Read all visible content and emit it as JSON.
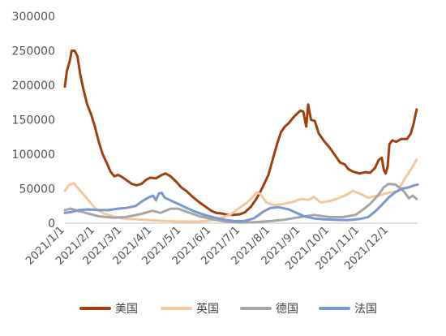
{
  "chart_data": {
    "type": "line",
    "title": "",
    "xlabel": "",
    "ylabel": "",
    "ylim": [
      0,
      300000
    ],
    "yticks": [
      0,
      50000,
      100000,
      150000,
      200000,
      250000,
      300000
    ],
    "ytick_labels": [
      "0",
      "50000",
      "100000",
      "150000",
      "200000",
      "250000",
      "300000"
    ],
    "x_range": [
      "2021-01-01",
      "2021-12-31"
    ],
    "xtick_labels": [
      "2021/1/1",
      "2021/2/1",
      "2021/3/1",
      "2021/4/1",
      "2021/5/1",
      "2021/6/1",
      "2021/7/1",
      "2021/8/1",
      "2021/9/1",
      "2021/10/1",
      "2021/11/1",
      "2021/12/1"
    ],
    "grid": false,
    "legend_position": "bottom",
    "series": [
      {
        "name": "美国",
        "color": "#A0410D",
        "points": [
          [
            "2021-01-01",
            198000
          ],
          [
            "2021-01-03",
            220000
          ],
          [
            "2021-01-06",
            235000
          ],
          [
            "2021-01-08",
            250000
          ],
          [
            "2021-01-11",
            250000
          ],
          [
            "2021-01-14",
            242000
          ],
          [
            "2021-01-17",
            215000
          ],
          [
            "2021-01-20",
            195000
          ],
          [
            "2021-01-24",
            172000
          ],
          [
            "2021-01-28",
            158000
          ],
          [
            "2021-02-01",
            140000
          ],
          [
            "2021-02-05",
            118000
          ],
          [
            "2021-02-09",
            100000
          ],
          [
            "2021-02-13",
            88000
          ],
          [
            "2021-02-17",
            75000
          ],
          [
            "2021-02-21",
            68000
          ],
          [
            "2021-02-25",
            70000
          ],
          [
            "2021-03-01",
            67000
          ],
          [
            "2021-03-06",
            62000
          ],
          [
            "2021-03-11",
            57000
          ],
          [
            "2021-03-16",
            55000
          ],
          [
            "2021-03-21",
            57000
          ],
          [
            "2021-03-26",
            63000
          ],
          [
            "2021-03-30",
            66000
          ],
          [
            "2021-04-05",
            65000
          ],
          [
            "2021-04-11",
            70000
          ],
          [
            "2021-04-15",
            72000
          ],
          [
            "2021-04-20",
            68000
          ],
          [
            "2021-04-26",
            60000
          ],
          [
            "2021-05-01",
            52000
          ],
          [
            "2021-05-07",
            46000
          ],
          [
            "2021-05-13",
            38000
          ],
          [
            "2021-05-20",
            30000
          ],
          [
            "2021-05-26",
            24000
          ],
          [
            "2021-06-01",
            18000
          ],
          [
            "2021-06-06",
            15000
          ],
          [
            "2021-06-12",
            14000
          ],
          [
            "2021-06-18",
            12000
          ],
          [
            "2021-06-24",
            12000
          ],
          [
            "2021-07-01",
            13000
          ],
          [
            "2021-07-06",
            16000
          ],
          [
            "2021-07-12",
            24000
          ],
          [
            "2021-07-18",
            36000
          ],
          [
            "2021-07-24",
            52000
          ],
          [
            "2021-07-30",
            70000
          ],
          [
            "2021-08-04",
            95000
          ],
          [
            "2021-08-08",
            115000
          ],
          [
            "2021-08-12",
            132000
          ],
          [
            "2021-08-16",
            140000
          ],
          [
            "2021-08-20",
            145000
          ],
          [
            "2021-08-24",
            152000
          ],
          [
            "2021-08-28",
            158000
          ],
          [
            "2021-09-01",
            163000
          ],
          [
            "2021-09-04",
            162000
          ],
          [
            "2021-09-07",
            140000
          ],
          [
            "2021-09-09",
            172000
          ],
          [
            "2021-09-12",
            150000
          ],
          [
            "2021-09-16",
            148000
          ],
          [
            "2021-09-20",
            130000
          ],
          [
            "2021-09-26",
            118000
          ],
          [
            "2021-10-01",
            110000
          ],
          [
            "2021-10-06",
            100000
          ],
          [
            "2021-10-12",
            88000
          ],
          [
            "2021-10-17",
            85000
          ],
          [
            "2021-10-20",
            79000
          ],
          [
            "2021-10-25",
            75000
          ],
          [
            "2021-11-01",
            72000
          ],
          [
            "2021-11-07",
            74000
          ],
          [
            "2021-11-12",
            73000
          ],
          [
            "2021-11-17",
            80000
          ],
          [
            "2021-11-21",
            92000
          ],
          [
            "2021-11-24",
            95000
          ],
          [
            "2021-11-26",
            78000
          ],
          [
            "2021-11-28",
            72000
          ],
          [
            "2021-11-30",
            82000
          ],
          [
            "2021-12-02",
            115000
          ],
          [
            "2021-12-05",
            120000
          ],
          [
            "2021-12-09",
            118000
          ],
          [
            "2021-12-14",
            122000
          ],
          [
            "2021-12-20",
            122000
          ],
          [
            "2021-12-24",
            130000
          ],
          [
            "2021-12-27",
            145000
          ],
          [
            "2021-12-30",
            165000
          ]
        ]
      },
      {
        "name": "英国",
        "color": "#F4C79D",
        "points": [
          [
            "2021-01-01",
            47000
          ],
          [
            "2021-01-05",
            55000
          ],
          [
            "2021-01-10",
            58000
          ],
          [
            "2021-01-15",
            50000
          ],
          [
            "2021-01-20",
            42000
          ],
          [
            "2021-01-26",
            32000
          ],
          [
            "2021-02-01",
            22000
          ],
          [
            "2021-02-10",
            14000
          ],
          [
            "2021-02-20",
            10000
          ],
          [
            "2021-03-01",
            7000
          ],
          [
            "2021-03-15",
            5500
          ],
          [
            "2021-04-01",
            4500
          ],
          [
            "2021-04-15",
            3000
          ],
          [
            "2021-05-01",
            2500
          ],
          [
            "2021-05-20",
            2500
          ],
          [
            "2021-06-01",
            4000
          ],
          [
            "2021-06-10",
            7000
          ],
          [
            "2021-06-20",
            12000
          ],
          [
            "2021-06-30",
            22000
          ],
          [
            "2021-07-08",
            30000
          ],
          [
            "2021-07-14",
            38000
          ],
          [
            "2021-07-18",
            45000
          ],
          [
            "2021-07-22",
            42000
          ],
          [
            "2021-07-28",
            30000
          ],
          [
            "2021-08-05",
            26000
          ],
          [
            "2021-08-15",
            28000
          ],
          [
            "2021-08-25",
            31000
          ],
          [
            "2021-09-01",
            35000
          ],
          [
            "2021-09-10",
            34000
          ],
          [
            "2021-09-15",
            38000
          ],
          [
            "2021-09-22",
            30000
          ],
          [
            "2021-10-01",
            32000
          ],
          [
            "2021-10-10",
            36000
          ],
          [
            "2021-10-20",
            42000
          ],
          [
            "2021-10-25",
            47000
          ],
          [
            "2021-11-01",
            43000
          ],
          [
            "2021-11-10",
            37000
          ],
          [
            "2021-11-20",
            40000
          ],
          [
            "2021-12-01",
            44000
          ],
          [
            "2021-12-10",
            46000
          ],
          [
            "2021-12-18",
            65000
          ],
          [
            "2021-12-25",
            80000
          ],
          [
            "2021-12-30",
            92000
          ]
        ]
      },
      {
        "name": "德国",
        "color": "#A6A6A6",
        "points": [
          [
            "2021-01-01",
            19000
          ],
          [
            "2021-01-07",
            21000
          ],
          [
            "2021-01-14",
            18000
          ],
          [
            "2021-01-25",
            14000
          ],
          [
            "2021-02-05",
            10000
          ],
          [
            "2021-02-20",
            8000
          ],
          [
            "2021-03-05",
            9000
          ],
          [
            "2021-03-20",
            13000
          ],
          [
            "2021-04-01",
            18000
          ],
          [
            "2021-04-10",
            15000
          ],
          [
            "2021-04-20",
            21000
          ],
          [
            "2021-04-28",
            21000
          ],
          [
            "2021-05-10",
            15000
          ],
          [
            "2021-05-20",
            10000
          ],
          [
            "2021-06-01",
            6000
          ],
          [
            "2021-06-15",
            2500
          ],
          [
            "2021-07-01",
            800
          ],
          [
            "2021-07-15",
            1500
          ],
          [
            "2021-08-01",
            3000
          ],
          [
            "2021-08-15",
            5000
          ],
          [
            "2021-09-01",
            9000
          ],
          [
            "2021-09-15",
            12000
          ],
          [
            "2021-10-01",
            9000
          ],
          [
            "2021-10-15",
            9000
          ],
          [
            "2021-10-28",
            12000
          ],
          [
            "2021-11-05",
            20000
          ],
          [
            "2021-11-12",
            28000
          ],
          [
            "2021-11-20",
            40000
          ],
          [
            "2021-11-26",
            52000
          ],
          [
            "2021-12-01",
            57000
          ],
          [
            "2021-12-08",
            56000
          ],
          [
            "2021-12-14",
            50000
          ],
          [
            "2021-12-18",
            44000
          ],
          [
            "2021-12-22",
            36000
          ],
          [
            "2021-12-26",
            40000
          ],
          [
            "2021-12-30",
            35000
          ]
        ]
      },
      {
        "name": "法国",
        "color": "#7B98D0",
        "points": [
          [
            "2021-01-01",
            15000
          ],
          [
            "2021-01-07",
            16000
          ],
          [
            "2021-01-15",
            19000
          ],
          [
            "2021-01-25",
            20000
          ],
          [
            "2021-02-05",
            19000
          ],
          [
            "2021-02-15",
            19000
          ],
          [
            "2021-02-25",
            21000
          ],
          [
            "2021-03-05",
            22000
          ],
          [
            "2021-03-15",
            25000
          ],
          [
            "2021-03-22",
            32000
          ],
          [
            "2021-03-28",
            37000
          ],
          [
            "2021-04-02",
            40000
          ],
          [
            "2021-04-05",
            33000
          ],
          [
            "2021-04-08",
            43000
          ],
          [
            "2021-04-11",
            44000
          ],
          [
            "2021-04-14",
            37000
          ],
          [
            "2021-04-20",
            33000
          ],
          [
            "2021-04-28",
            28000
          ],
          [
            "2021-05-05",
            23000
          ],
          [
            "2021-05-15",
            17000
          ],
          [
            "2021-05-25",
            12000
          ],
          [
            "2021-06-05",
            8000
          ],
          [
            "2021-06-15",
            5000
          ],
          [
            "2021-06-25",
            3000
          ],
          [
            "2021-07-05",
            3000
          ],
          [
            "2021-07-15",
            7000
          ],
          [
            "2021-07-25",
            17000
          ],
          [
            "2021-08-01",
            22000
          ],
          [
            "2021-08-10",
            23000
          ],
          [
            "2021-08-20",
            20000
          ],
          [
            "2021-08-28",
            15000
          ],
          [
            "2021-09-05",
            10000
          ],
          [
            "2021-09-15",
            7000
          ],
          [
            "2021-09-25",
            5500
          ],
          [
            "2021-10-05",
            5000
          ],
          [
            "2021-10-20",
            4500
          ],
          [
            "2021-11-01",
            6000
          ],
          [
            "2021-11-10",
            9000
          ],
          [
            "2021-11-18",
            18000
          ],
          [
            "2021-11-25",
            28000
          ],
          [
            "2021-12-01",
            37000
          ],
          [
            "2021-12-08",
            45000
          ],
          [
            "2021-12-15",
            50000
          ],
          [
            "2021-12-22",
            52000
          ],
          [
            "2021-12-28",
            55000
          ],
          [
            "2021-12-31",
            56000
          ]
        ]
      }
    ]
  }
}
